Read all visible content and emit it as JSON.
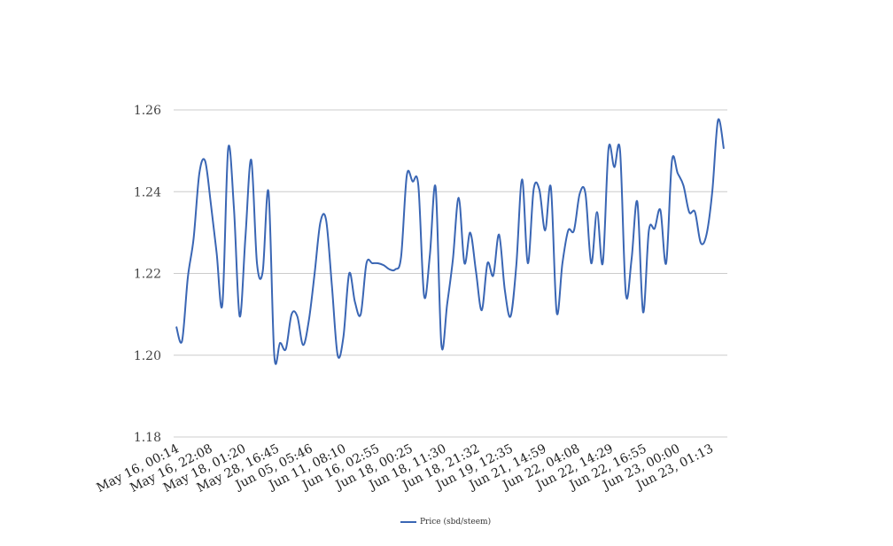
{
  "chart_data": {
    "type": "line",
    "title": "",
    "xlabel": "",
    "ylabel": "",
    "ylim": [
      1.18,
      1.26
    ],
    "yticks": [
      "1.18",
      "1.20",
      "1.22",
      "1.24",
      "1.26"
    ],
    "grid": true,
    "legend_position": "bottom-center",
    "x_tick_labels": [
      "May 16, 00:14",
      "May 16, 22:08",
      "May 18, 01:20",
      "May 28, 16:45",
      "Jun 05, 05:46",
      "Jun 11, 08:10",
      "Jun 16, 02:55",
      "Jun 18, 00:25",
      "Jun 18, 11:30",
      "Jun 18, 21:32",
      "Jun 19, 12:35",
      "Jun 21, 14:59",
      "Jun 22, 04:08",
      "Jun 22, 14:29",
      "Jun 22, 16:55",
      "Jun 23, 00:00",
      "Jun 23, 01:13"
    ],
    "series": [
      {
        "name": "Price (sbd/steem)",
        "color": "#3a66b4",
        "values": [
          1.207,
          1.2035,
          1.219,
          1.2285,
          1.2445,
          1.2475,
          1.237,
          1.225,
          1.2125,
          1.2505,
          1.236,
          1.2095,
          1.229,
          1.2478,
          1.2225,
          1.2205,
          1.24,
          1.2,
          1.203,
          1.2015,
          1.21,
          1.2095,
          1.2025,
          1.2085,
          1.22,
          1.2325,
          1.233,
          1.217,
          1.2,
          1.2045,
          1.22,
          1.213,
          1.21,
          1.2225,
          1.2225,
          1.2225,
          1.222,
          1.221,
          1.221,
          1.224,
          1.244,
          1.2425,
          1.2415,
          1.2145,
          1.2245,
          1.241,
          1.2025,
          1.2125,
          1.2235,
          1.2385,
          1.2225,
          1.23,
          1.2205,
          1.211,
          1.2225,
          1.2195,
          1.2295,
          1.216,
          1.2095,
          1.222,
          1.243,
          1.2225,
          1.2405,
          1.2405,
          1.2305,
          1.241,
          1.2105,
          1.2225,
          1.2305,
          1.2305,
          1.2395,
          1.2395,
          1.2225,
          1.235,
          1.2225,
          1.2505,
          1.246,
          1.25,
          1.215,
          1.2235,
          1.2375,
          1.2105,
          1.2305,
          1.231,
          1.2355,
          1.2225,
          1.2475,
          1.2445,
          1.2415,
          1.235,
          1.235,
          1.2275,
          1.2295,
          1.24,
          1.2575,
          1.2505
        ]
      }
    ]
  }
}
